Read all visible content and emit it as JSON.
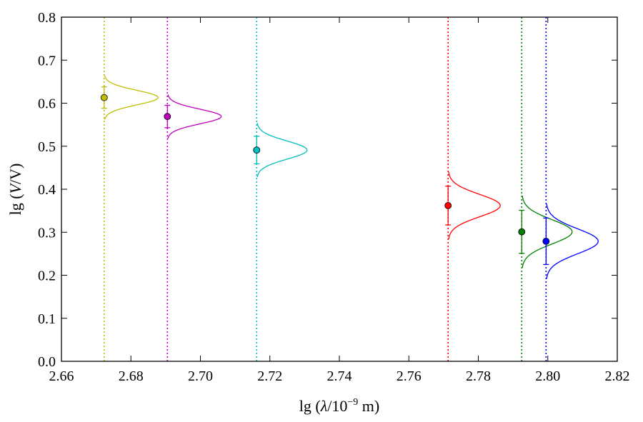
{
  "chart_data": {
    "type": "scatter",
    "title": "",
    "xlabel_parts": [
      "lg (",
      "λ",
      "/10",
      "−9",
      " m)"
    ],
    "ylabel_parts": [
      "lg (",
      "V",
      "/V)"
    ],
    "xlim": [
      2.66,
      2.82
    ],
    "ylim": [
      0.0,
      0.8
    ],
    "xticks": [
      2.66,
      2.68,
      2.7,
      2.72,
      2.74,
      2.76,
      2.78,
      2.8,
      2.82
    ],
    "xtick_labels": [
      "2.66",
      "2.68",
      "2.70",
      "2.72",
      "2.74",
      "2.76",
      "2.78",
      "2.80",
      "2.82"
    ],
    "yticks": [
      0.0,
      0.1,
      0.2,
      0.3,
      0.4,
      0.5,
      0.6,
      0.7,
      0.8
    ],
    "ytick_labels": [
      "0.0",
      "0.1",
      "0.2",
      "0.3",
      "0.4",
      "0.5",
      "0.6",
      "0.7",
      "0.8"
    ],
    "grid": false,
    "series": [
      {
        "color": "#bfbf00",
        "x": 2.6723,
        "y": 0.613,
        "yerr": 0.025,
        "sigma": 0.017,
        "amp": 0.0155
      },
      {
        "color": "#bf00bf",
        "x": 2.6905,
        "y": 0.569,
        "yerr": 0.026,
        "sigma": 0.017,
        "amp": 0.0155
      },
      {
        "color": "#00bfbf",
        "x": 2.7162,
        "y": 0.491,
        "yerr": 0.032,
        "sigma": 0.021,
        "amp": 0.0145
      },
      {
        "color": "#ff0000",
        "x": 2.7713,
        "y": 0.362,
        "yerr": 0.045,
        "sigma": 0.026,
        "amp": 0.015
      },
      {
        "color": "#008000",
        "x": 2.7925,
        "y": 0.301,
        "yerr": 0.05,
        "sigma": 0.028,
        "amp": 0.0145
      },
      {
        "color": "#0000ff",
        "x": 2.7995,
        "y": 0.279,
        "yerr": 0.054,
        "sigma": 0.029,
        "amp": 0.015
      }
    ]
  }
}
